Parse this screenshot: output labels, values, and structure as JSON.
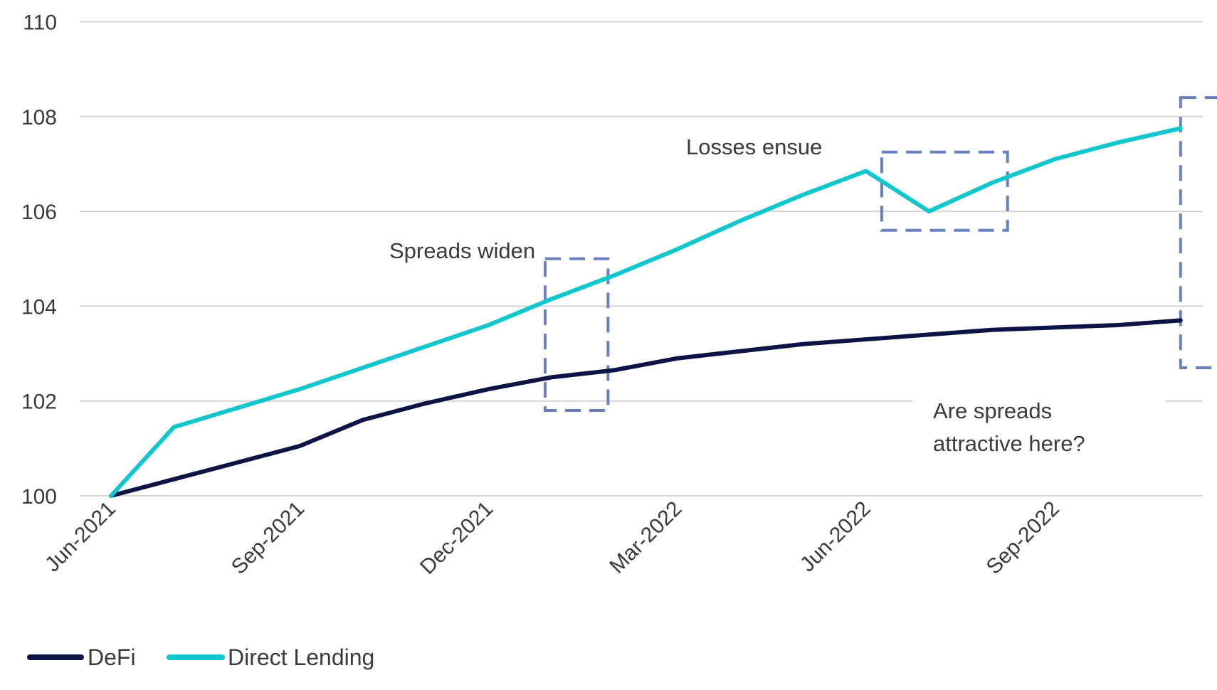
{
  "chart_data": {
    "type": "line",
    "x": [
      "2021-06",
      "2021-07",
      "2021-08",
      "2021-09",
      "2021-10",
      "2021-11",
      "2021-12",
      "2022-01",
      "2022-02",
      "2022-03",
      "2022-04",
      "2022-05",
      "2022-06",
      "2022-07",
      "2022-08",
      "2022-09",
      "2022-10",
      "2022-11"
    ],
    "x_tick_labels": [
      {
        "date": "2021-06",
        "label": "Jun-2021"
      },
      {
        "date": "2021-09",
        "label": "Sep-2021"
      },
      {
        "date": "2021-12",
        "label": "Dec-2021"
      },
      {
        "date": "2022-03",
        "label": "Mar-2022"
      },
      {
        "date": "2022-06",
        "label": "Jun-2022"
      },
      {
        "date": "2022-09",
        "label": "Sep-2022"
      }
    ],
    "y_ticks": [
      100,
      102,
      104,
      106,
      108,
      110
    ],
    "ylim": [
      100,
      110
    ],
    "grid": true,
    "legend_position": "bottom-left",
    "series": [
      {
        "name": "DeFi",
        "color": "#0d1445",
        "values": [
          100.0,
          100.35,
          100.7,
          101.05,
          101.6,
          101.95,
          102.25,
          102.5,
          102.65,
          102.9,
          103.05,
          103.2,
          103.3,
          103.4,
          103.5,
          103.55,
          103.6,
          103.7
        ]
      },
      {
        "name": "Direct Lending",
        "color": "#11c6cc",
        "values": [
          100.0,
          101.45,
          101.85,
          102.25,
          102.7,
          103.15,
          103.6,
          104.15,
          104.65,
          105.2,
          105.8,
          106.35,
          106.85,
          106.0,
          106.6,
          107.1,
          107.45,
          107.75
        ]
      }
    ],
    "annotations": [
      {
        "text": "Spreads widen"
      },
      {
        "text": "Losses ensue"
      },
      {
        "text_lines": [
          "Are spreads",
          "attractive here?"
        ]
      }
    ],
    "highlight_box_color": "#6a7fc0"
  }
}
